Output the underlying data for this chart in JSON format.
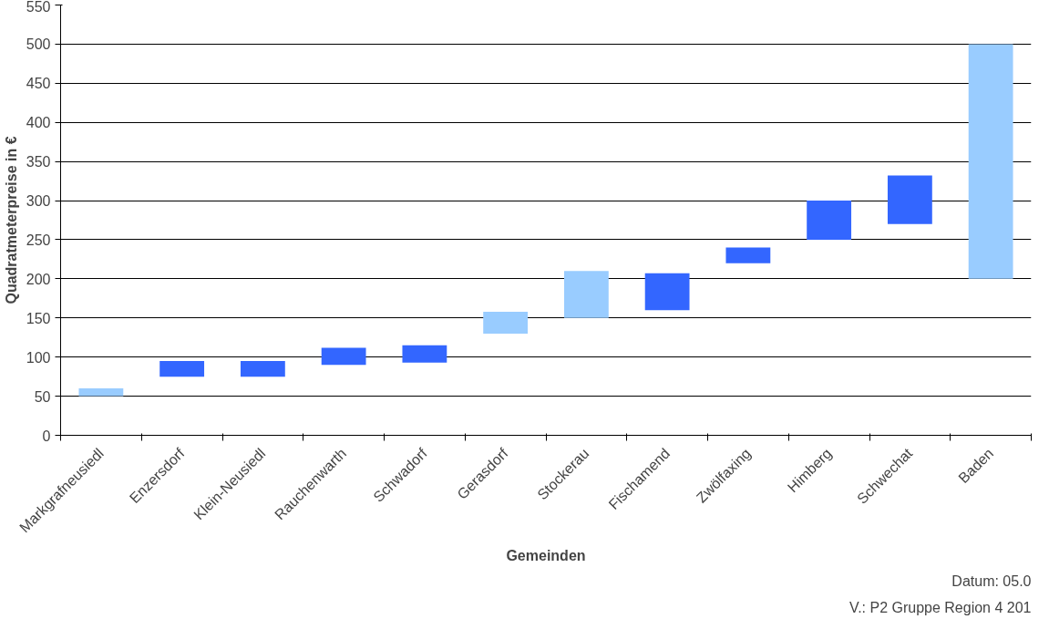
{
  "chart_data": {
    "type": "bar",
    "categories": [
      "Markgrafneusiedl",
      "Enzersdorf",
      "Klein-Neusiedl",
      "Rauchenwarth",
      "Schwadorf",
      "Gerasdorf",
      "Stockerau",
      "Fischamend",
      "Zwölfaxing",
      "Himberg",
      "Schwechat",
      "Baden"
    ],
    "base": [
      50,
      75,
      75,
      90,
      93,
      130,
      150,
      160,
      220,
      250,
      270,
      200
    ],
    "values": [
      10,
      20,
      20,
      22,
      22,
      28,
      60,
      47,
      20,
      50,
      62,
      300
    ],
    "colors": [
      "#99ccff",
      "#3366ff",
      "#3366ff",
      "#3366ff",
      "#3366ff",
      "#99ccff",
      "#99ccff",
      "#3366ff",
      "#3366ff",
      "#3366ff",
      "#3366ff",
      "#99ccff"
    ],
    "xlabel": "Gemeinden",
    "ylabel": "Quadratmeterpreise in €",
    "ylim": [
      0,
      550
    ],
    "yticks": [
      0,
      50,
      100,
      150,
      200,
      250,
      300,
      350,
      400,
      450,
      500,
      550
    ],
    "grid": "y",
    "annotations": [
      "Datum: 05.0",
      "V.: P2 Gruppe Region 4 201"
    ]
  }
}
